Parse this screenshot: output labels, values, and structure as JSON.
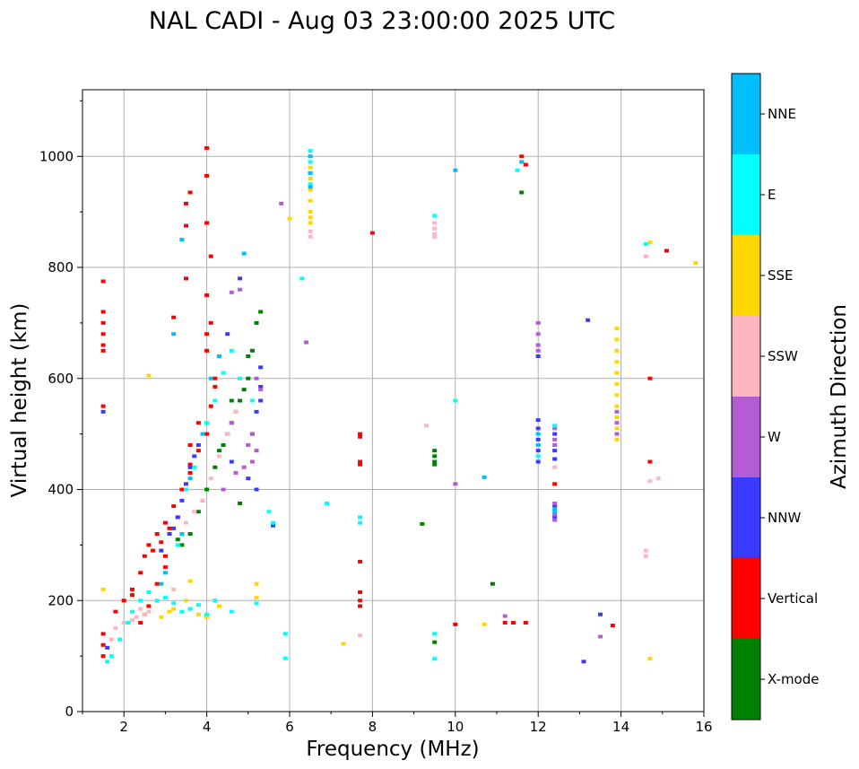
{
  "chart_data": {
    "type": "scatter",
    "title": "NAL CADI - Aug 03 23:00:00 2025 UTC",
    "xlabel": "Frequency (MHz)",
    "ylabel": "Virtual height (km)",
    "xlim": [
      1,
      16
    ],
    "ylim": [
      0,
      1120
    ],
    "xticks": [
      2,
      4,
      6,
      8,
      10,
      12,
      14,
      16
    ],
    "yticks": [
      0,
      200,
      400,
      600,
      800,
      1000
    ],
    "grid": true,
    "colorbar": {
      "label": "Azimuth Direction",
      "categories": [
        {
          "name": "X-mode",
          "color": "#008000"
        },
        {
          "name": "Vertical",
          "color": "#ff0000"
        },
        {
          "name": "NNW",
          "color": "#3a3aff"
        },
        {
          "name": "W",
          "color": "#b45bd6"
        },
        {
          "name": "SSW",
          "color": "#ffb6c1"
        },
        {
          "name": "SSE",
          "color": "#ffd700"
        },
        {
          "name": "E",
          "color": "#00ffff"
        },
        {
          "name": "NNE",
          "color": "#00bfff"
        }
      ]
    },
    "series": [
      {
        "name": "X-mode",
        "color": "#008000",
        "points": [
          [
            3.4,
            300
          ],
          [
            3.6,
            320
          ],
          [
            3.8,
            360
          ],
          [
            4.0,
            400
          ],
          [
            4.2,
            440
          ],
          [
            4.4,
            480
          ],
          [
            4.6,
            520
          ],
          [
            4.8,
            560
          ],
          [
            5.0,
            600
          ],
          [
            5.1,
            650
          ],
          [
            5.2,
            700
          ],
          [
            5.3,
            720
          ],
          [
            4.5,
            500
          ],
          [
            4.7,
            540
          ],
          [
            4.9,
            580
          ],
          [
            3.9,
            380
          ],
          [
            4.3,
            470
          ],
          [
            4.6,
            560
          ],
          [
            5.0,
            640
          ],
          [
            3.3,
            310
          ],
          [
            4.8,
            375
          ],
          [
            9.5,
            460
          ],
          [
            9.5,
            470
          ],
          [
            9.5,
            450
          ],
          [
            9.5,
            445
          ],
          [
            9.5,
            125
          ],
          [
            10.9,
            230
          ],
          [
            9.2,
            338
          ],
          [
            11.6,
            935
          ],
          [
            2.5,
            175
          ]
        ]
      },
      {
        "name": "Vertical",
        "color": "#ff0000",
        "points": [
          [
            1.5,
            100
          ],
          [
            1.5,
            120
          ],
          [
            1.5,
            140
          ],
          [
            1.8,
            180
          ],
          [
            2.0,
            200
          ],
          [
            2.2,
            220
          ],
          [
            2.4,
            250
          ],
          [
            2.5,
            280
          ],
          [
            2.6,
            300
          ],
          [
            2.8,
            320
          ],
          [
            3.0,
            340
          ],
          [
            3.2,
            370
          ],
          [
            3.4,
            400
          ],
          [
            3.6,
            430
          ],
          [
            3.8,
            470
          ],
          [
            4.0,
            500
          ],
          [
            4.1,
            550
          ],
          [
            4.2,
            600
          ],
          [
            4.0,
            650
          ],
          [
            4.1,
            700
          ],
          [
            4.0,
            750
          ],
          [
            3.5,
            780
          ],
          [
            3.2,
            710
          ],
          [
            1.5,
            680
          ],
          [
            1.5,
            700
          ],
          [
            1.5,
            720
          ],
          [
            1.5,
            660
          ],
          [
            1.5,
            650
          ],
          [
            1.5,
            550
          ],
          [
            1.5,
            775
          ],
          [
            4.0,
            880
          ],
          [
            4.0,
            1015
          ],
          [
            4.0,
            965
          ],
          [
            3.6,
            935
          ],
          [
            3.5,
            915
          ],
          [
            3.5,
            875
          ],
          [
            4.1,
            820
          ],
          [
            2.2,
            210
          ],
          [
            2.6,
            190
          ],
          [
            2.8,
            230
          ],
          [
            3.0,
            260
          ],
          [
            2.4,
            160
          ],
          [
            3.6,
            480
          ],
          [
            3.8,
            520
          ],
          [
            7.7,
            200
          ],
          [
            7.7,
            215
          ],
          [
            7.7,
            190
          ],
          [
            7.7,
            270
          ],
          [
            7.7,
            445
          ],
          [
            7.7,
            450
          ],
          [
            7.7,
            500
          ],
          [
            7.7,
            495
          ],
          [
            11.2,
            160
          ],
          [
            11.4,
            160
          ],
          [
            11.7,
            160
          ],
          [
            11.6,
            1000
          ],
          [
            11.7,
            985
          ],
          [
            12.4,
            410
          ],
          [
            14.7,
            600
          ],
          [
            14.7,
            450
          ],
          [
            13.8,
            155
          ],
          [
            15.1,
            830
          ],
          [
            8.0,
            862
          ],
          [
            10.0,
            157
          ],
          [
            3.0,
            280
          ],
          [
            3.3,
            350
          ],
          [
            2.7,
            290
          ],
          [
            2.9,
            305
          ],
          [
            3.1,
            330
          ],
          [
            3.6,
            445
          ],
          [
            4.2,
            585
          ],
          [
            4.0,
            680
          ]
        ]
      },
      {
        "name": "NNW",
        "color": "#3a3aff",
        "points": [
          [
            1.6,
            115
          ],
          [
            2.9,
            290
          ],
          [
            3.1,
            320
          ],
          [
            3.3,
            350
          ],
          [
            3.4,
            380
          ],
          [
            3.5,
            410
          ],
          [
            3.6,
            440
          ],
          [
            3.7,
            460
          ],
          [
            3.8,
            480
          ],
          [
            4.8,
            780
          ],
          [
            5.1,
            500
          ],
          [
            5.2,
            540
          ],
          [
            5.3,
            560
          ],
          [
            4.5,
            680
          ],
          [
            5.3,
            620
          ],
          [
            5.3,
            585
          ],
          [
            12.0,
            450
          ],
          [
            12.0,
            470
          ],
          [
            12.0,
            490
          ],
          [
            12.0,
            510
          ],
          [
            12.0,
            525
          ],
          [
            12.4,
            500
          ],
          [
            12.4,
            470
          ],
          [
            12.4,
            455
          ],
          [
            12.4,
            370
          ],
          [
            12.4,
            350
          ],
          [
            13.2,
            705
          ],
          [
            13.1,
            90
          ],
          [
            13.5,
            175
          ],
          [
            12.0,
            640
          ],
          [
            5.6,
            335
          ],
          [
            1.5,
            540
          ],
          [
            3.2,
            330
          ],
          [
            4.6,
            450
          ],
          [
            5.0,
            420
          ],
          [
            5.2,
            400
          ]
        ]
      },
      {
        "name": "W",
        "color": "#b45bd6",
        "points": [
          [
            4.8,
            760
          ],
          [
            5.1,
            500
          ],
          [
            5.0,
            480
          ],
          [
            4.9,
            440
          ],
          [
            4.6,
            520
          ],
          [
            5.3,
            580
          ],
          [
            5.2,
            600
          ],
          [
            4.7,
            430
          ],
          [
            12.0,
            700
          ],
          [
            12.0,
            680
          ],
          [
            12.0,
            660
          ],
          [
            12.0,
            650
          ],
          [
            12.4,
            490
          ],
          [
            12.4,
            480
          ],
          [
            12.4,
            510
          ],
          [
            12.4,
            375
          ],
          [
            12.4,
            355
          ],
          [
            12.4,
            345
          ],
          [
            13.5,
            135
          ],
          [
            13.9,
            500
          ],
          [
            13.9,
            520
          ],
          [
            13.9,
            540
          ],
          [
            6.4,
            665
          ],
          [
            11.2,
            172
          ],
          [
            10.0,
            410
          ],
          [
            5.8,
            915
          ],
          [
            4.6,
            755
          ],
          [
            5.2,
            470
          ],
          [
            4.4,
            400
          ],
          [
            5.1,
            450
          ]
        ]
      },
      {
        "name": "SSW",
        "color": "#ffb6c1",
        "points": [
          [
            1.7,
            130
          ],
          [
            1.8,
            150
          ],
          [
            2.0,
            160
          ],
          [
            2.3,
            170
          ],
          [
            2.5,
            175
          ],
          [
            2.2,
            165
          ],
          [
            2.6,
            180
          ],
          [
            3.5,
            340
          ],
          [
            3.7,
            360
          ],
          [
            3.9,
            380
          ],
          [
            4.1,
            420
          ],
          [
            4.3,
            460
          ],
          [
            4.5,
            500
          ],
          [
            4.7,
            540
          ],
          [
            9.5,
            870
          ],
          [
            9.5,
            860
          ],
          [
            9.5,
            855
          ],
          [
            9.5,
            880
          ],
          [
            14.6,
            290
          ],
          [
            14.6,
            280
          ],
          [
            14.6,
            820
          ],
          [
            14.7,
            415
          ],
          [
            14.9,
            420
          ],
          [
            6.5,
            865
          ],
          [
            6.5,
            855
          ],
          [
            7.7,
            137
          ],
          [
            12.4,
            440
          ],
          [
            3.2,
            220
          ],
          [
            2.4,
            185
          ],
          [
            9.3,
            515
          ]
        ]
      },
      {
        "name": "SSE",
        "color": "#ffd700",
        "points": [
          [
            2.9,
            170
          ],
          [
            3.1,
            180
          ],
          [
            3.2,
            185
          ],
          [
            3.5,
            200
          ],
          [
            3.6,
            235
          ],
          [
            3.8,
            175
          ],
          [
            4.0,
            170
          ],
          [
            5.2,
            230
          ],
          [
            5.2,
            205
          ],
          [
            6.5,
            1000
          ],
          [
            6.5,
            980
          ],
          [
            6.5,
            960
          ],
          [
            6.5,
            940
          ],
          [
            6.5,
            920
          ],
          [
            6.5,
            900
          ],
          [
            6.5,
            890
          ],
          [
            6.5,
            880
          ],
          [
            13.9,
            690
          ],
          [
            13.9,
            670
          ],
          [
            13.9,
            650
          ],
          [
            13.9,
            630
          ],
          [
            13.9,
            610
          ],
          [
            13.9,
            590
          ],
          [
            13.9,
            570
          ],
          [
            13.9,
            550
          ],
          [
            13.9,
            530
          ],
          [
            13.9,
            510
          ],
          [
            13.9,
            490
          ],
          [
            14.7,
            845
          ],
          [
            14.7,
            95
          ],
          [
            15.8,
            808
          ],
          [
            6.0,
            888
          ],
          [
            10.7,
            157
          ],
          [
            7.3,
            122
          ],
          [
            1.5,
            220
          ],
          [
            2.6,
            605
          ],
          [
            4.3,
            190
          ]
        ]
      },
      {
        "name": "E",
        "color": "#00ffff",
        "points": [
          [
            1.6,
            90
          ],
          [
            1.7,
            100
          ],
          [
            1.9,
            130
          ],
          [
            2.1,
            160
          ],
          [
            2.2,
            180
          ],
          [
            2.4,
            200
          ],
          [
            2.6,
            215
          ],
          [
            2.8,
            200
          ],
          [
            3.0,
            205
          ],
          [
            3.2,
            195
          ],
          [
            3.4,
            180
          ],
          [
            3.6,
            185
          ],
          [
            3.8,
            192
          ],
          [
            4.0,
            175
          ],
          [
            4.2,
            200
          ],
          [
            3.3,
            300
          ],
          [
            3.5,
            400
          ],
          [
            3.7,
            440
          ],
          [
            4.0,
            520
          ],
          [
            4.2,
            560
          ],
          [
            4.4,
            610
          ],
          [
            4.6,
            650
          ],
          [
            4.8,
            600
          ],
          [
            5.1,
            560
          ],
          [
            5.5,
            360
          ],
          [
            5.6,
            340
          ],
          [
            6.5,
            1010
          ],
          [
            6.5,
            990
          ],
          [
            6.5,
            970
          ],
          [
            6.5,
            950
          ],
          [
            6.3,
            780
          ],
          [
            6.9,
            375
          ],
          [
            7.7,
            350
          ],
          [
            7.7,
            340
          ],
          [
            9.5,
            893
          ],
          [
            9.5,
            95
          ],
          [
            9.5,
            140
          ],
          [
            10.0,
            560
          ],
          [
            11.5,
            975
          ],
          [
            12.0,
            460
          ],
          [
            12.4,
            515
          ],
          [
            14.6,
            842
          ],
          [
            5.9,
            96
          ],
          [
            5.9,
            140
          ],
          [
            5.2,
            195
          ],
          [
            4.6,
            180
          ]
        ]
      },
      {
        "name": "NNE",
        "color": "#00bfff",
        "points": [
          [
            3.2,
            680
          ],
          [
            3.4,
            850
          ],
          [
            4.9,
            825
          ],
          [
            6.5,
            1000
          ],
          [
            6.5,
            970
          ],
          [
            6.5,
            945
          ],
          [
            10.0,
            975
          ],
          [
            10.7,
            422
          ],
          [
            11.6,
            990
          ],
          [
            12.0,
            480
          ],
          [
            12.0,
            500
          ],
          [
            12.4,
            365
          ],
          [
            12.4,
            360
          ],
          [
            3.6,
            420
          ],
          [
            3.9,
            500
          ],
          [
            4.1,
            600
          ],
          [
            4.3,
            640
          ],
          [
            2.9,
            230
          ],
          [
            3.0,
            250
          ],
          [
            3.4,
            320
          ]
        ]
      }
    ]
  }
}
